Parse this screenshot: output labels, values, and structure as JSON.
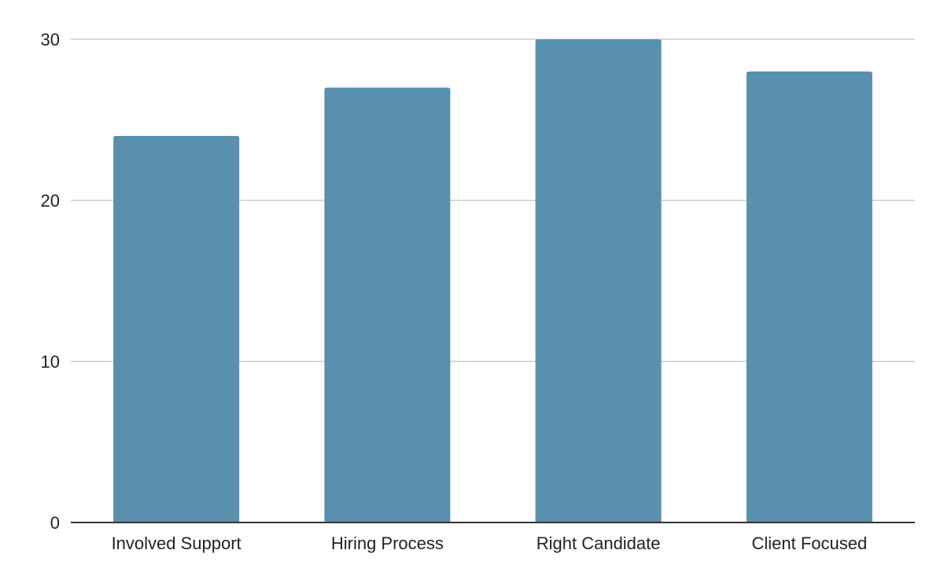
{
  "chart_data": {
    "type": "bar",
    "categories": [
      "Involved Support",
      "Hiring Process",
      "Right Candidate",
      "Client Focused"
    ],
    "values": [
      24,
      27,
      30,
      28
    ],
    "yticks": [
      0,
      10,
      20,
      30
    ],
    "ylim": [
      0,
      30
    ],
    "grid": true,
    "bar_color": "#5990ae",
    "title": "",
    "xlabel": "",
    "ylabel": ""
  }
}
